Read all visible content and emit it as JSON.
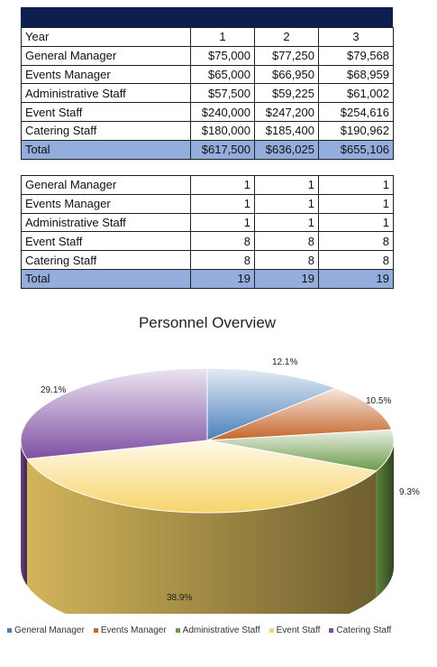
{
  "salaries": {
    "header": [
      "Year",
      "1",
      "2",
      "3"
    ],
    "rows": [
      [
        "General Manager",
        "$75,000",
        "$77,250",
        "$79,568"
      ],
      [
        "Events Manager",
        "$65,000",
        "$66,950",
        "$68,959"
      ],
      [
        "Administrative Staff",
        "$57,500",
        "$59,225",
        "$61,002"
      ],
      [
        "Event Staff",
        "$240,000",
        "$247,200",
        "$254,616"
      ],
      [
        "Catering Staff",
        "$180,000",
        "$185,400",
        "$190,962"
      ]
    ],
    "total": [
      "Total",
      "$617,500",
      "$636,025",
      "$655,106"
    ]
  },
  "headcount": {
    "rows": [
      [
        "General Manager",
        "1",
        "1",
        "1"
      ],
      [
        "Events Manager",
        "1",
        "1",
        "1"
      ],
      [
        "Administrative Staff",
        "1",
        "1",
        "1"
      ],
      [
        "Event Staff",
        "8",
        "8",
        "8"
      ],
      [
        "Catering Staff",
        "8",
        "8",
        "8"
      ]
    ],
    "total": [
      "Total",
      "19",
      "19",
      "19"
    ]
  },
  "chart_data": {
    "type": "pie",
    "title": "Personnel Overview",
    "categories": [
      "General Manager",
      "Events Manager",
      "Administrative Staff",
      "Event Staff",
      "Catering Staff"
    ],
    "values": [
      12.1,
      10.5,
      9.3,
      38.9,
      29.1
    ],
    "labels": [
      "12.1%",
      "10.5%",
      "9.3%",
      "38.9%",
      "29.1%"
    ],
    "colors": [
      "#4a7ebb",
      "#c5652a",
      "#6a9a47",
      "#f7d46a",
      "#7f4fa3"
    ],
    "legend_position": "bottom",
    "style": "3d"
  }
}
